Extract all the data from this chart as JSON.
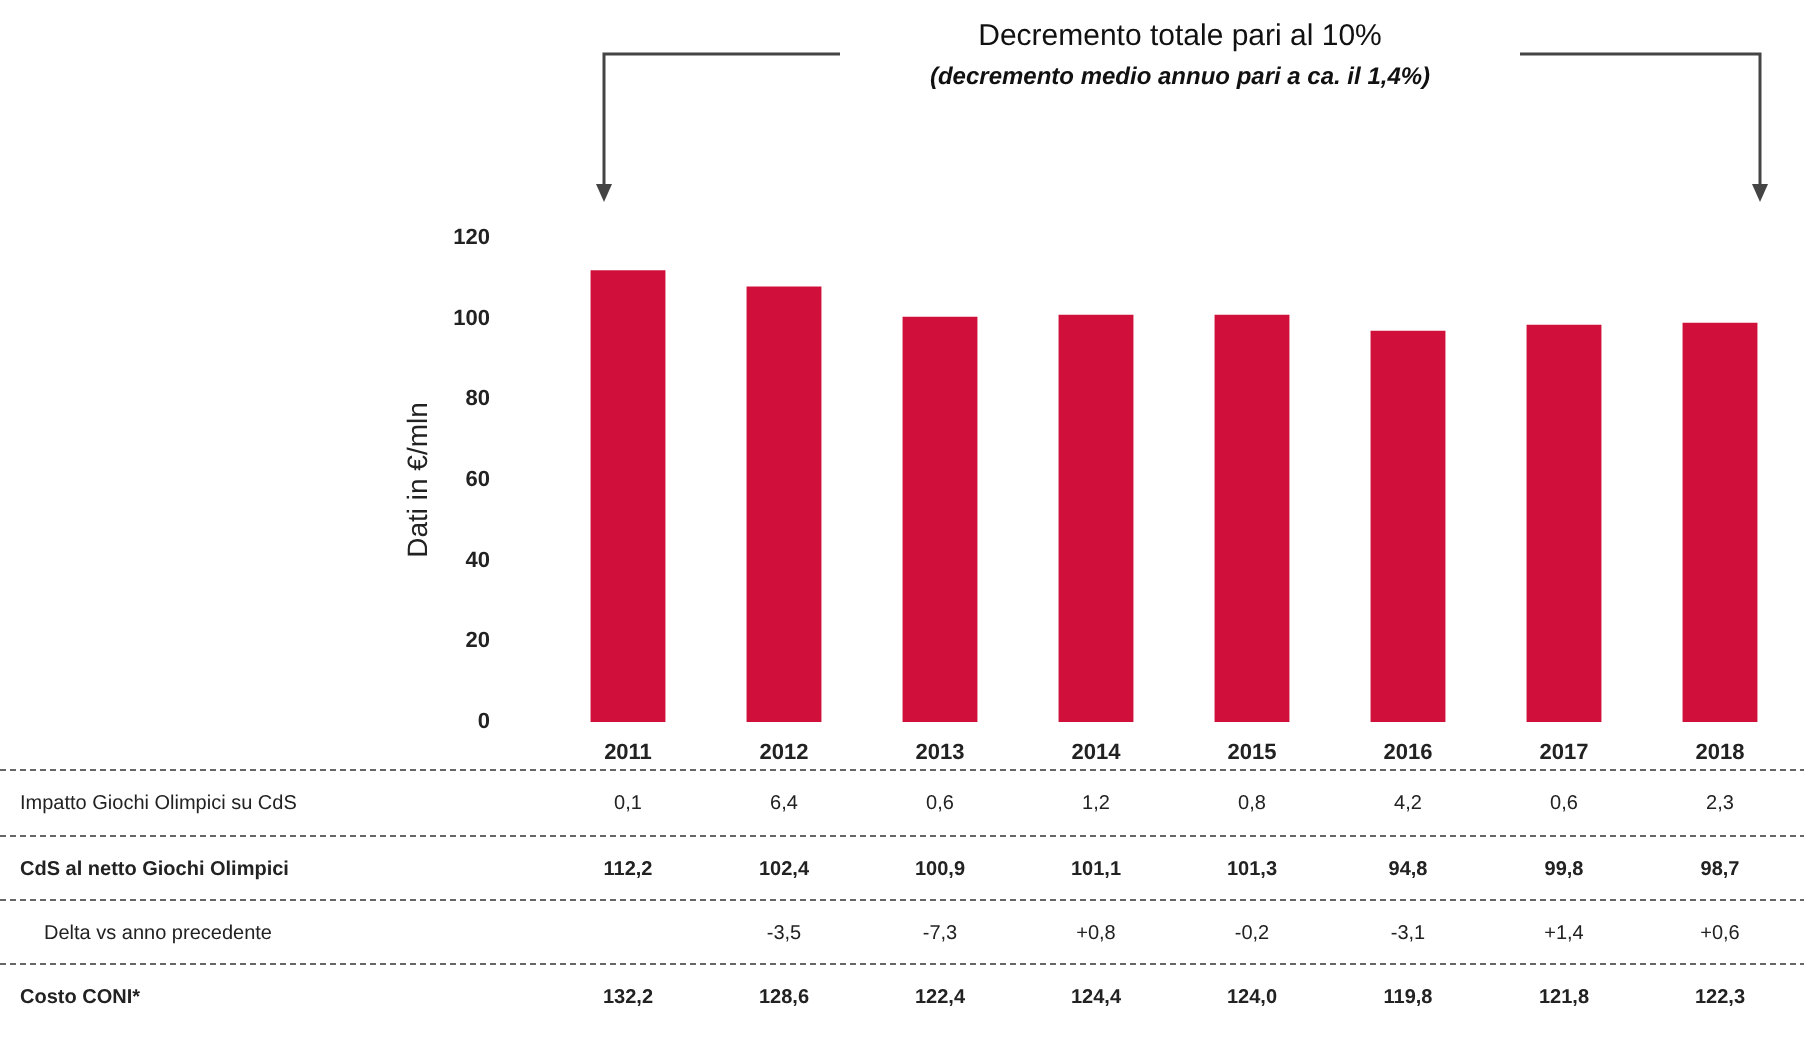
{
  "chart_data": {
    "type": "bar",
    "title": "Decremento totale pari al 10%",
    "subtitle": "(decremento medio annuo pari a ca. il 1,4%)",
    "ylabel": "Dati in €/mln",
    "categories": [
      "2011",
      "2012",
      "2013",
      "2014",
      "2015",
      "2016",
      "2017",
      "2018"
    ],
    "values": [
      112,
      108,
      100.5,
      101,
      101,
      97,
      98.5,
      99
    ],
    "color": "#d0103a",
    "ylim": [
      0,
      120
    ],
    "yticks": [
      0,
      20,
      40,
      60,
      80,
      100,
      120
    ],
    "grid": false,
    "annotations": [
      "Impatto Giochi Olimpici su CdS",
      "0,1",
      "6,4",
      "0,6",
      "1,2",
      "0,8",
      "4,2",
      "0,6",
      "2,3",
      "CdS al netto Giochi Olimpici",
      "112,2",
      "102,4",
      "100,9",
      "101,1",
      "101,3",
      "94,8",
      "99,8",
      "98,7",
      "Delta vs anno precedente",
      null,
      "-3,5",
      "-7,3",
      "+0,8",
      "-0,2",
      "-3,1",
      "+1,4",
      "+0,6",
      "Costo CONI*",
      "132,2",
      "128,6",
      "122,4",
      "124,4",
      "124,0",
      "119,8",
      "121,8",
      "122,3"
    ]
  }
}
